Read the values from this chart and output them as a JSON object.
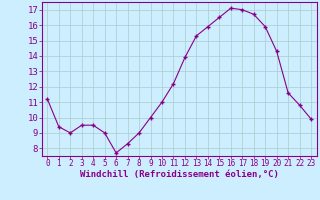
{
  "x": [
    0,
    1,
    2,
    3,
    4,
    5,
    6,
    7,
    8,
    9,
    10,
    11,
    12,
    13,
    14,
    15,
    16,
    17,
    18,
    19,
    20,
    21,
    22,
    23
  ],
  "y": [
    11.2,
    9.4,
    9.0,
    9.5,
    9.5,
    9.0,
    7.7,
    8.3,
    9.0,
    10.0,
    11.0,
    12.2,
    13.9,
    15.3,
    15.9,
    16.5,
    17.1,
    17.0,
    16.7,
    15.9,
    14.3,
    11.6,
    10.8,
    9.9
  ],
  "line_color": "#880088",
  "marker": "+",
  "marker_color": "#880088",
  "bg_color": "#cceeff",
  "grid_color": "#aacccc",
  "xlabel": "Windchill (Refroidissement éolien,°C)",
  "xlim": [
    -0.5,
    23.5
  ],
  "ylim": [
    7.5,
    17.5
  ],
  "yticks": [
    8,
    9,
    10,
    11,
    12,
    13,
    14,
    15,
    16,
    17
  ],
  "xticks": [
    0,
    1,
    2,
    3,
    4,
    5,
    6,
    7,
    8,
    9,
    10,
    11,
    12,
    13,
    14,
    15,
    16,
    17,
    18,
    19,
    20,
    21,
    22,
    23
  ],
  "tick_color": "#880088",
  "spine_color": "#880088",
  "xlabel_fontsize": 6.5,
  "ytick_fontsize": 6.5,
  "xtick_fontsize": 5.5
}
